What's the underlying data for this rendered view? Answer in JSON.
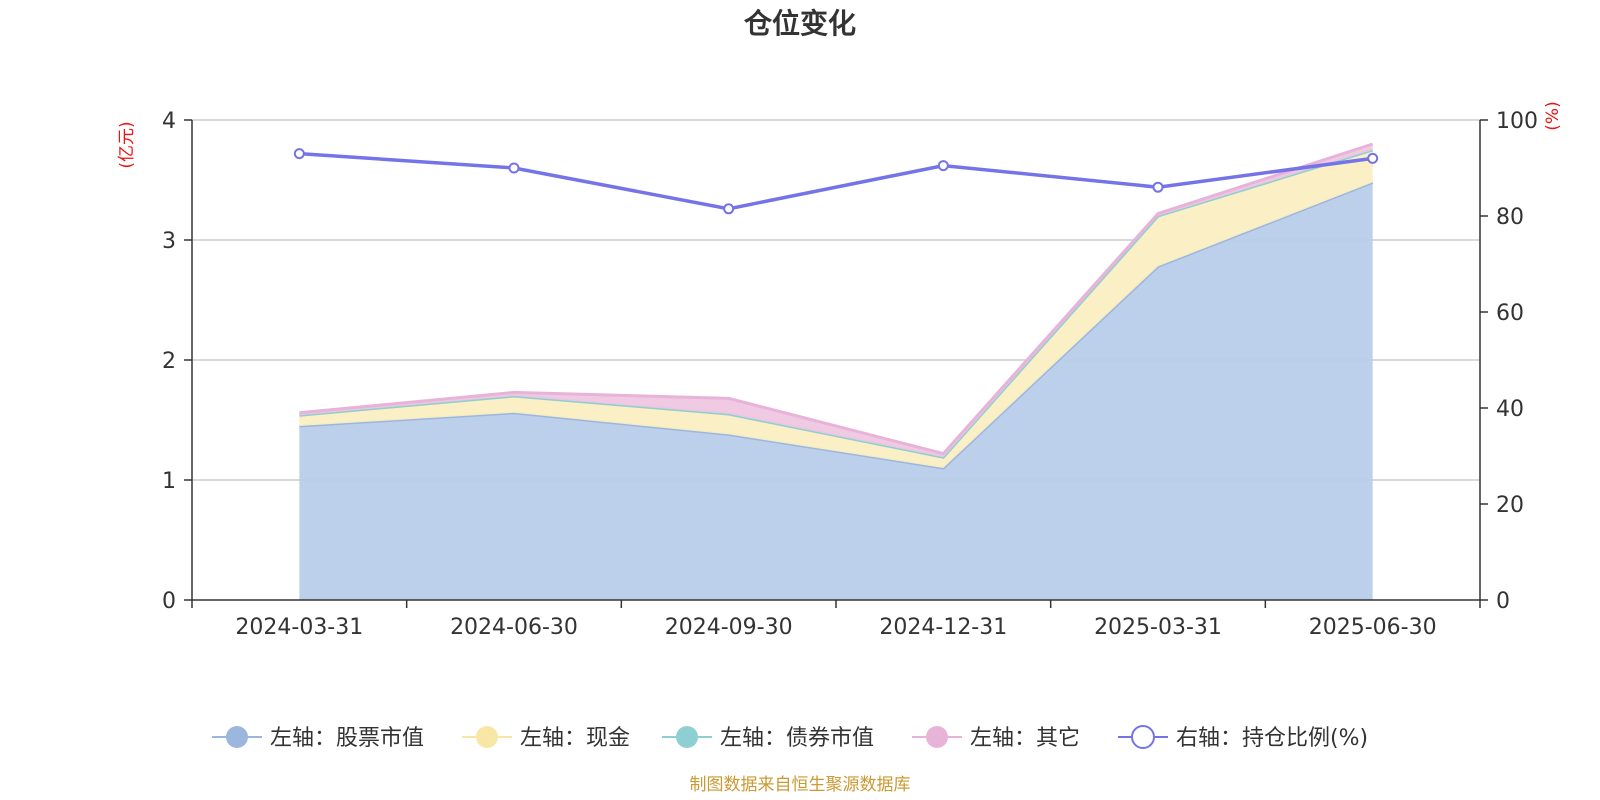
{
  "chart_data": {
    "type": "area",
    "title": "仓位变化",
    "categories": [
      "2024-03-31",
      "2024-06-30",
      "2024-09-30",
      "2024-12-31",
      "2025-03-31",
      "2025-06-30"
    ],
    "stacked": true,
    "left_axis": {
      "unit": "(亿元)",
      "min": 0,
      "max": 4,
      "ticks": [
        "0",
        "1",
        "2",
        "3",
        "4"
      ]
    },
    "right_axis": {
      "unit": "(%)",
      "min": 0,
      "max": 100,
      "ticks": [
        "0",
        "20",
        "40",
        "60",
        "80",
        "100"
      ]
    },
    "series": [
      {
        "name": "左轴：股票市值",
        "axis": "left",
        "kind": "area",
        "color": "#9bb7de",
        "fill": "#b8cdeb",
        "values": [
          1.45,
          1.56,
          1.38,
          1.1,
          2.78,
          3.48
        ]
      },
      {
        "name": "左轴：现金",
        "axis": "left",
        "kind": "area",
        "color": "#f8e6a6",
        "fill": "#fbeec2",
        "values": [
          0.09,
          0.14,
          0.17,
          0.09,
          0.42,
          0.27
        ]
      },
      {
        "name": "左轴：债券市值",
        "axis": "left",
        "kind": "area",
        "color": "#8fcfd1",
        "fill": "#aadcde",
        "values": [
          0,
          0,
          0,
          0,
          0,
          0
        ]
      },
      {
        "name": "左轴：其它",
        "axis": "left",
        "kind": "area",
        "color": "#e8b3d8",
        "fill": "#efc6e2",
        "values": [
          0.02,
          0.03,
          0.13,
          0.03,
          0.02,
          0.05
        ]
      },
      {
        "name": "右轴：持仓比例(%)",
        "axis": "right",
        "kind": "line",
        "color": "#7474e8",
        "values": [
          93,
          90,
          81.5,
          90.5,
          86,
          92
        ]
      }
    ],
    "grid": true,
    "legend_position": "bottom"
  },
  "footer": {
    "source": "制图数据来自恒生聚源数据库"
  }
}
